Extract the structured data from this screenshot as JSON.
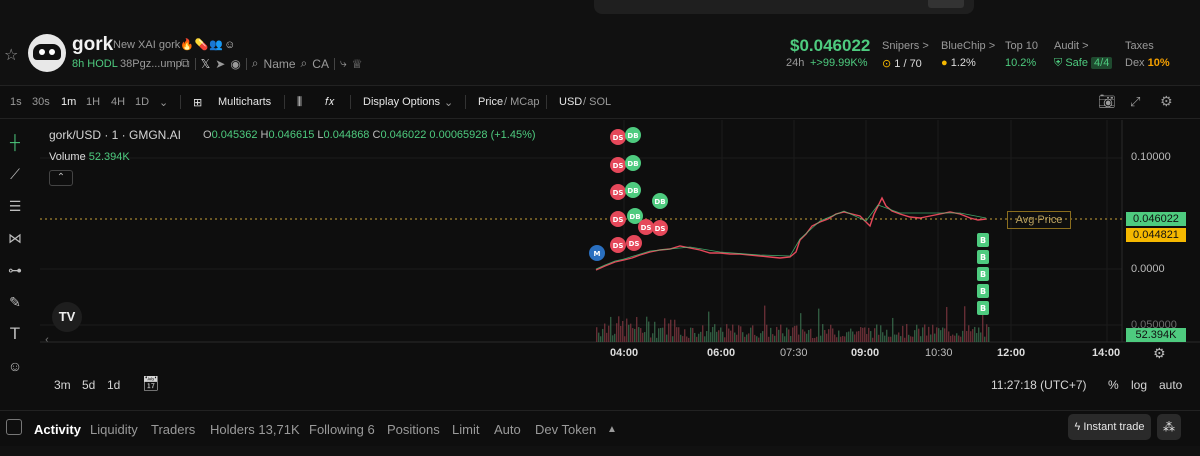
{
  "token": {
    "name": "gork",
    "description": "New XAI gork",
    "age": "8h HODL",
    "address": "38Pgz...ump",
    "name_link": "Name",
    "ca_link": "CA"
  },
  "market": {
    "price": "$0.046022",
    "change_label": "24h",
    "change_value": "+>99.99K%",
    "stats": [
      {
        "label": "Snipers >",
        "value": "1 / 70",
        "color": "#d6d6d6"
      },
      {
        "label": "BlueChip >",
        "value": "1.2%",
        "color": "#d6d6d6"
      },
      {
        "label": "Top 10",
        "value": "10.2%",
        "color": "#4ecb7f"
      },
      {
        "label": "Audit >",
        "value": "Safe",
        "extra": "4/4",
        "color": "#4ecb7f"
      },
      {
        "label": "Taxes",
        "value": "Dex",
        "extra": "10%",
        "color": "#9a9a9a"
      }
    ]
  },
  "toolbar": {
    "intervals": [
      "1s",
      "30s",
      "1m",
      "1H",
      "4H",
      "1D"
    ],
    "active_interval": "1m",
    "multicharts": "Multicharts",
    "display_options": "Display Options",
    "price_label": "Price",
    "mcap_label": "/ MCap",
    "usd_label": "USD",
    "sol_label": "/ SOL"
  },
  "chart": {
    "pair": "gork/USD · 1 · GMGN.AI",
    "open": "0.045362",
    "high": "0.046615",
    "low": "0.044868",
    "close": "0.046022",
    "change": "0.00065928 (+1.45%)",
    "volume_label": "Volume",
    "volume_value": "52.394K",
    "avg_price_label": "Avg Price",
    "y_ticks": [
      "0.10000",
      "0.0000",
      "0.050000"
    ],
    "price_tag_last": "0.046022",
    "price_tag_avg": "0.044821",
    "volume_tag": "52.394K",
    "time_ticks": [
      "04:00",
      "06:00",
      "07:30",
      "09:00",
      "10:30",
      "12:00",
      "14:00"
    ],
    "ranges": [
      "3m",
      "5d",
      "1d"
    ],
    "clock": "11:27:18 (UTC+7)",
    "scale_opts": [
      "%",
      "log",
      "auto"
    ],
    "marker_labels": {
      "ds": "DS",
      "db": "DB",
      "m": "M",
      "b": "B"
    }
  },
  "tabs": {
    "items": [
      "Activity",
      "Liquidity",
      "Traders",
      "Holders 13,71K",
      "Following 6",
      "Positions",
      "Limit",
      "Auto",
      "Dev Token"
    ],
    "active": "Activity",
    "instant_trade": "Instant trade"
  },
  "colors": {
    "green": "#4ecb7f",
    "red": "#e5485a",
    "gold": "#f5b800",
    "blue": "#2a6fbf"
  }
}
